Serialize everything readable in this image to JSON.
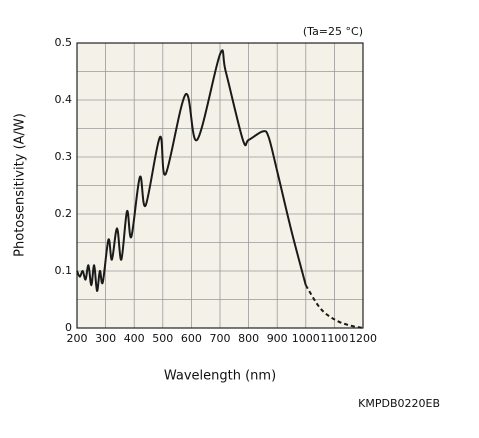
{
  "chart_data": {
    "type": "line",
    "annotation": "(Ta=25 °C)",
    "xlabel": "Wavelength (nm)",
    "ylabel": "Photosensitivity (A/W)",
    "xlim": [
      200,
      1200
    ],
    "xticks": [
      200,
      300,
      400,
      500,
      600,
      700,
      800,
      900,
      1000,
      1100,
      1200
    ],
    "ylim": [
      0,
      0.5
    ],
    "yticks": [
      0,
      0.1,
      0.2,
      0.3,
      0.4,
      0.5
    ],
    "ygrid": [
      0.05,
      0.15,
      0.25,
      0.35,
      0.45
    ],
    "grid": true,
    "series": [
      {
        "color": "#1a1a1a",
        "dashed": false,
        "x": [
          200,
          210,
          220,
          230,
          240,
          250,
          260,
          270,
          280,
          290,
          310,
          322,
          340,
          355,
          375,
          390,
          420,
          440,
          490,
          510,
          580,
          620,
          700,
          720,
          780,
          800,
          850,
          870,
          900,
          950,
          1000
        ],
        "values": [
          0.1,
          0.09,
          0.1,
          0.085,
          0.11,
          0.075,
          0.11,
          0.065,
          0.1,
          0.08,
          0.155,
          0.12,
          0.175,
          0.12,
          0.205,
          0.16,
          0.265,
          0.215,
          0.335,
          0.27,
          0.41,
          0.33,
          0.48,
          0.45,
          0.33,
          0.33,
          0.345,
          0.335,
          0.275,
          0.17,
          0.075
        ]
      },
      {
        "color": "#1a1a1a",
        "dashed": true,
        "x": [
          1000,
          1050,
          1100,
          1150,
          1200
        ],
        "values": [
          0.075,
          0.035,
          0.015,
          0.005,
          0
        ]
      }
    ]
  },
  "footer": "KMPDB0220EB"
}
